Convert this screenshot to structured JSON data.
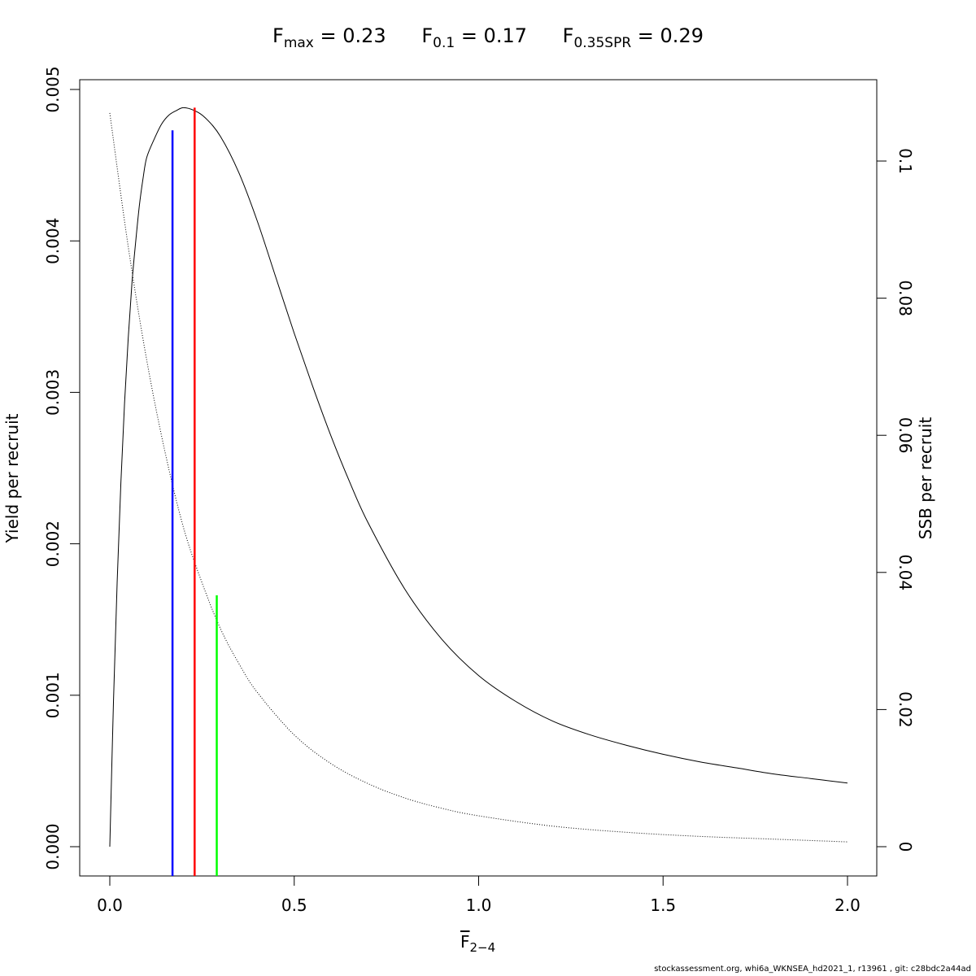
{
  "title": {
    "fmax": {
      "symbol": "F",
      "sub": "max",
      "value_text": " = 0.23"
    },
    "f01": {
      "symbol": "F",
      "sub": "0.1",
      "value_text": " = 0.17"
    },
    "fspr": {
      "symbol": "F",
      "sub": "0.35SPR",
      "value_text": " = 0.29"
    }
  },
  "footer": "stockassessment.org, whi6a_WKNSEA_hd2021_1, r13961 , git: c28bdc2a44ad",
  "xaxis_label": {
    "symbol": "F",
    "sub": "2−4"
  },
  "chart_data": {
    "type": "line",
    "xlabel": "F̅ 2−4",
    "ylabel_left": "Yield per recruit",
    "ylabel_right": "SSB per recruit",
    "xlim": [
      0,
      2.0
    ],
    "ylim_left": [
      0,
      0.005
    ],
    "ylim_right": [
      0,
      0.11
    ],
    "xticks": [
      0.0,
      0.5,
      1.0,
      1.5,
      2.0
    ],
    "xtick_labels": [
      "0.0",
      "0.5",
      "1.0",
      "1.5",
      "2.0"
    ],
    "yticks_left": [
      0.0,
      0.001,
      0.002,
      0.003,
      0.004,
      0.005
    ],
    "ytick_labels_left": [
      "0.000",
      "0.001",
      "0.002",
      "0.003",
      "0.004",
      "0.005"
    ],
    "yticks_right": [
      0,
      0.02,
      0.04,
      0.06,
      0.08,
      0.1
    ],
    "ytick_labels_right": [
      "0",
      "0.02",
      "0.04",
      "0.06",
      "0.08",
      "0.1"
    ],
    "grid": false,
    "series": [
      {
        "axis": "left",
        "style": "solid",
        "color": "#000000",
        "x": [
          0,
          0.01,
          0.02,
          0.03,
          0.04,
          0.05,
          0.06,
          0.07,
          0.08,
          0.09,
          0.1,
          0.12,
          0.14,
          0.16,
          0.18,
          0.2,
          0.23,
          0.26,
          0.3,
          0.35,
          0.4,
          0.45,
          0.5,
          0.55,
          0.6,
          0.65,
          0.7,
          0.8,
          0.9,
          1.0,
          1.1,
          1.2,
          1.3,
          1.4,
          1.5,
          1.6,
          1.7,
          1.8,
          1.9,
          2.0
        ],
        "y": [
          0,
          0.00096,
          0.00175,
          0.0024,
          0.00293,
          0.00336,
          0.00372,
          0.00399,
          0.00423,
          0.00441,
          0.00455,
          0.00467,
          0.00477,
          0.00483,
          0.00486,
          0.00488,
          0.00486,
          0.00481,
          0.00469,
          0.00445,
          0.00413,
          0.00376,
          0.00339,
          0.00304,
          0.00271,
          0.00241,
          0.00214,
          0.0017,
          0.00137,
          0.00113,
          0.00096,
          0.00083,
          0.00074,
          0.00067,
          0.00061,
          0.00056,
          0.00052,
          0.00048,
          0.00045,
          0.00042
        ]
      },
      {
        "axis": "right",
        "style": "dotted",
        "color": "#000000",
        "x": [
          0,
          0.05,
          0.1,
          0.15,
          0.2,
          0.25,
          0.3,
          0.35,
          0.4,
          0.5,
          0.6,
          0.7,
          0.8,
          0.9,
          1.0,
          1.2,
          1.4,
          1.6,
          1.8,
          2.0
        ],
        "y": [
          0.107,
          0.0875,
          0.071,
          0.0575,
          0.0465,
          0.0385,
          0.0318,
          0.0267,
          0.0225,
          0.0163,
          0.0121,
          0.0092,
          0.0071,
          0.0056,
          0.0045,
          0.003,
          0.0021,
          0.0015,
          0.0011,
          0.0007
        ]
      }
    ],
    "reference_lines": [
      {
        "name": "F0.1",
        "x": 0.17,
        "y_top_left": 0.00473,
        "color": "#0000ff"
      },
      {
        "name": "Fmax",
        "x": 0.23,
        "y_top_left": 0.00488,
        "color": "#ff0000"
      },
      {
        "name": "F0.35SPR",
        "x": 0.29,
        "y_top_left": 0.00166,
        "color": "#00ff00"
      }
    ]
  }
}
